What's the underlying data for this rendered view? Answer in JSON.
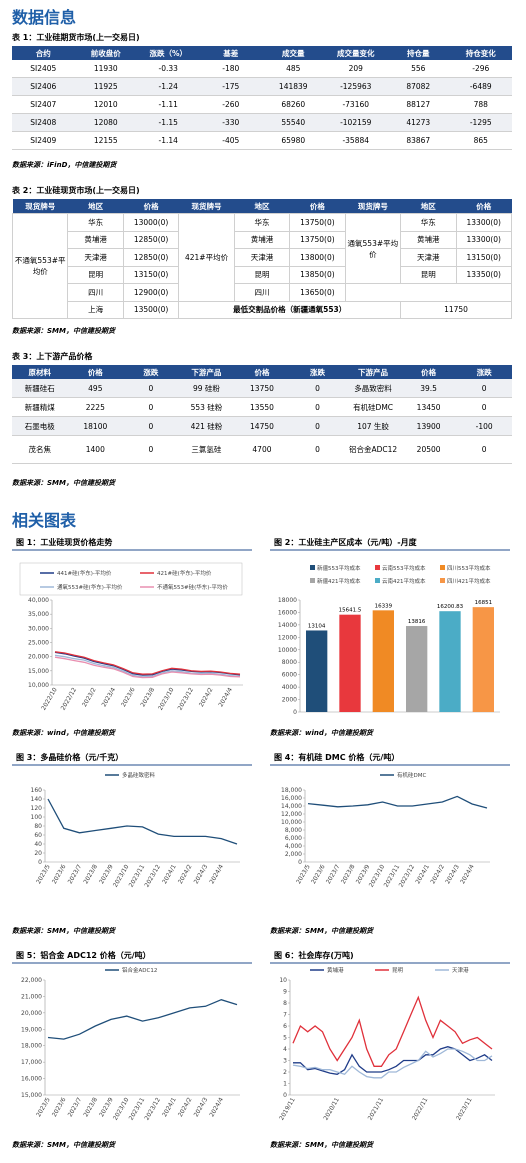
{
  "header": {
    "title": "数据信息"
  },
  "table1": {
    "title": "表 1：工业硅期货市场(上一交易日)",
    "columns": [
      "合约",
      "前收盘价",
      "涨跌（%）",
      "基差",
      "成交量",
      "成交量变化",
      "持仓量",
      "持仓变化"
    ],
    "rows": [
      [
        "SI2405",
        11930,
        -0.33,
        -180,
        485,
        209,
        556,
        -296
      ],
      [
        "SI2406",
        11925,
        -1.24,
        -175,
        141839,
        -125963,
        87082,
        -6489
      ],
      [
        "SI2407",
        12010,
        -1.11,
        -260,
        68260,
        -73160,
        88127,
        788
      ],
      [
        "SI2408",
        12080,
        -1.15,
        -330,
        55540,
        -102159,
        41273,
        -1295
      ],
      [
        "SI2409",
        12155,
        -1.14,
        -405,
        65980,
        -35884,
        83867,
        865
      ]
    ],
    "source": "数据来源：iFinD，中信建投期货"
  },
  "table2": {
    "title": "表 2：工业硅现货市场(上一交易日)",
    "columns": [
      "现货牌号",
      "地区",
      "价格",
      "现货牌号",
      "地区",
      "价格",
      "现货牌号",
      "地区",
      "价格"
    ],
    "blocks": [
      {
        "brand": "不通氧553#平均价",
        "regions": [
          "华东",
          "黄埔港",
          "天津港",
          "昆明",
          "四川",
          "上海"
        ],
        "prices": [
          "13000(0)",
          "12850(0)",
          "12850(0)",
          "13150(0)",
          "12900(0)",
          "13500(0)"
        ]
      },
      {
        "brand": "421#平均价",
        "regions": [
          "华东",
          "黄埔港",
          "天津港",
          "昆明",
          "四川"
        ],
        "prices": [
          "13750(0)",
          "13750(0)",
          "13800(0)",
          "13850(0)",
          "13650(0)"
        ]
      },
      {
        "brand": "通氧553#平均价",
        "regions": [
          "华东",
          "黄埔港",
          "天津港",
          "昆明"
        ],
        "prices": [
          "13300(0)",
          "13300(0)",
          "13150(0)",
          "13350(0)"
        ]
      }
    ],
    "min_delivery": {
      "label": "最低交割品价格（新疆通氧553）",
      "value": 11750
    },
    "source": "数据来源：SMM，中信建投期货"
  },
  "table3": {
    "title": "表 3：上下游产品价格",
    "columns": [
      "原材料",
      "价格",
      "涨跌",
      "下游产品",
      "价格",
      "涨跌",
      "下游产品",
      "价格",
      "涨跌"
    ],
    "rows": [
      [
        "新疆硅石",
        495,
        0,
        "99 硅粉",
        13750,
        0,
        "多晶致密料",
        39.5,
        0
      ],
      [
        "新疆精煤",
        2225,
        0,
        "553 硅粉",
        13550,
        0,
        "有机硅DMC",
        13450,
        0
      ],
      [
        "石墨电极",
        18100,
        0,
        "421 硅粉",
        14750,
        0,
        "107 生胶",
        13900,
        -100
      ],
      [
        "茂名焦",
        1400,
        0,
        "三氯氢硅",
        4700,
        0,
        "铝合金ADC12",
        20500,
        0
      ]
    ],
    "source": "数据来源：SMM，中信建投期货"
  },
  "section2": "相关图表",
  "charts": [
    {
      "type": "line",
      "title": "图 1：工业硅现货价格走势",
      "source": "数据来源：wind，中信建投期货",
      "categories": [
        "2022/10",
        null,
        "2022/12",
        null,
        "2023/2",
        null,
        "2023/4",
        null,
        "2023/6",
        null,
        "2023/8",
        null,
        "2023/10",
        null,
        "2023/12",
        null,
        "2024/2",
        null,
        "2024/4",
        null
      ],
      "ylim": [
        10000,
        40000
      ],
      "yticks": [
        {
          "value": 10000,
          "label": "10,000"
        },
        {
          "value": 15000,
          "label": "15,000"
        },
        {
          "value": 20000,
          "label": "20,000"
        },
        {
          "value": 25000,
          "label": "25,000"
        },
        {
          "value": 30000,
          "label": "30,000"
        },
        {
          "value": 35000,
          "label": "35,000"
        },
        {
          "value": 40000,
          "label": "40,000"
        }
      ],
      "series": [
        {
          "name": "441#硅(华东)-平均价",
          "color": "#1f3c88",
          "values": [
            21500,
            21000,
            20200,
            19500,
            18300,
            17500,
            16800,
            15500,
            14000,
            13500,
            13600,
            14800,
            15600,
            15300,
            14800,
            14600,
            14700,
            14400,
            13900,
            13600
          ]
        },
        {
          "name": "421#硅(华东)-平均价",
          "color": "#e0303a",
          "values": [
            21700,
            21300,
            20500,
            19800,
            18600,
            17800,
            17100,
            15800,
            14300,
            13800,
            13900,
            15000,
            15900,
            15600,
            15000,
            14800,
            14900,
            14600,
            14100,
            13800
          ]
        },
        {
          "name": "通氧553#硅(华东)-平均价",
          "color": "#9fb8d8",
          "values": [
            20500,
            20000,
            19300,
            18800,
            17600,
            16800,
            16200,
            14900,
            13400,
            12900,
            13000,
            14300,
            15000,
            14700,
            14200,
            14000,
            14100,
            13800,
            13300,
            13100
          ]
        },
        {
          "name": "不通氧553#硅(华东)-平均价",
          "color": "#e98fb0",
          "values": [
            19800,
            19300,
            18600,
            18000,
            17000,
            16300,
            15700,
            14500,
            13000,
            12600,
            12700,
            13900,
            14600,
            14300,
            13900,
            13700,
            13800,
            13500,
            13000,
            12900
          ]
        }
      ]
    },
    {
      "type": "bar",
      "title": "图 2：工业硅主产区成本（元/吨）-月度",
      "source": "数据来源：wind，中信建投期货",
      "categories": [
        "新疆553平均成本",
        "云南553平均成本",
        "四川553平均成本",
        "新疆421平均成本",
        "云南421平均成本",
        "四川421平均成本"
      ],
      "values": [
        13104,
        15641.5,
        16339,
        13816,
        16200.83,
        16851
      ],
      "colors": [
        "#1f4e79",
        "#e8383d",
        "#f08a24",
        "#a6a6a6",
        "#4bacc6",
        "#f79646"
      ],
      "ylim": [
        0,
        18000
      ],
      "yticks": [
        0,
        2000,
        4000,
        6000,
        8000,
        10000,
        12000,
        14000,
        16000,
        18000
      ]
    },
    {
      "type": "line",
      "title": "图 3：多晶硅价格（元/千克）",
      "source": "数据来源：SMM，中信建投期货",
      "categories": [
        "2023/5",
        "2023/6",
        "2023/7",
        "2023/8",
        "2023/9",
        "2023/10",
        "2023/11",
        "2023/12",
        "2024/1",
        "2024/2",
        "2024/3",
        "2024/4",
        null
      ],
      "ylim": [
        0,
        160
      ],
      "yticks": [
        0,
        20,
        40,
        60,
        80,
        100,
        120,
        140,
        160
      ],
      "series": [
        {
          "name": "多晶硅致密料",
          "color": "#1f4e79",
          "values": [
            140,
            75,
            65,
            70,
            75,
            80,
            78,
            62,
            57,
            57,
            57,
            52,
            40
          ]
        }
      ]
    },
    {
      "type": "line",
      "title": "图 4：有机硅 DMC 价格（元/吨）",
      "source": "数据来源：SMM，中信建投期货",
      "categories": [
        "2023/5",
        "2023/6",
        "2023/7",
        "2023/8",
        "2023/9",
        "2023/10",
        "2023/11",
        "2023/12",
        "2024/1",
        "2024/2",
        "2024/3",
        "2024/4",
        null
      ],
      "ylim": [
        0,
        18000
      ],
      "yticks": [
        0,
        {
          "value": 2000,
          "label": "2,000"
        },
        {
          "value": 4000,
          "label": "4,000"
        },
        {
          "value": 6000,
          "label": "6,000"
        },
        {
          "value": 8000,
          "label": "8,000"
        },
        {
          "value": 10000,
          "label": "10,000"
        },
        {
          "value": 12000,
          "label": "12,000"
        },
        {
          "value": 14000,
          "label": "14,000"
        },
        {
          "value": 16000,
          "label": "16,000"
        },
        {
          "value": 18000,
          "label": "18,000"
        }
      ],
      "series": [
        {
          "name": "有机硅DMC",
          "color": "#1f4e79",
          "values": [
            14600,
            14200,
            13800,
            14000,
            14300,
            15000,
            14000,
            14000,
            14500,
            15000,
            16400,
            14500,
            13500
          ]
        }
      ]
    },
    {
      "type": "line",
      "title": "图 5：铝合金 ADC12 价格（元/吨）",
      "source": "数据来源：SMM，中信建投期货",
      "categories": [
        "2023/5",
        "2023/6",
        "2023/7",
        "2023/8",
        "2023/9",
        "2023/10",
        "2023/11",
        "2023/12",
        "2024/1",
        "2024/2",
        "2024/3",
        "2024/4",
        null
      ],
      "ylim": [
        15000,
        22000
      ],
      "yticks": [
        {
          "value": 15000,
          "label": "15,000"
        },
        {
          "value": 16000,
          "label": "16,000"
        },
        {
          "value": 17000,
          "label": "17,000"
        },
        {
          "value": 18000,
          "label": "18,000"
        },
        {
          "value": 19000,
          "label": "19,000"
        },
        {
          "value": 20000,
          "label": "20,000"
        },
        {
          "value": 21000,
          "label": "21,000"
        },
        {
          "value": 22000,
          "label": "22,000"
        }
      ],
      "series": [
        {
          "name": "铝合金ADC12",
          "color": "#1f4e79",
          "values": [
            18500,
            18400,
            18700,
            19200,
            19600,
            19800,
            19500,
            19700,
            20000,
            20300,
            20400,
            20800,
            20500
          ]
        }
      ]
    },
    {
      "type": "line",
      "title": "图 6：社会库存(万吨)",
      "source": "数据来源：SMM，中信建投期货",
      "categories": [
        "2019/11",
        null,
        null,
        null,
        null,
        null,
        "2020/11",
        null,
        null,
        null,
        null,
        null,
        "2021/11",
        null,
        null,
        null,
        null,
        null,
        "2022/11",
        null,
        null,
        null,
        null,
        null,
        "2023/11",
        null,
        null,
        null
      ],
      "ylim": [
        0,
        10
      ],
      "yticks": [
        0,
        1,
        2,
        3,
        4,
        5,
        6,
        7,
        8,
        9,
        10
      ],
      "series": [
        {
          "name": "黄埔港",
          "color": "#1f3c88",
          "values": [
            2.8,
            2.8,
            2.2,
            2.3,
            2.1,
            1.9,
            1.8,
            2.2,
            3.5,
            2.5,
            2,
            2,
            2,
            2.2,
            2.5,
            3,
            3,
            3,
            3.5,
            3.5,
            4,
            4.2,
            4,
            3.5,
            3,
            3.2,
            3.5,
            3
          ]
        },
        {
          "name": "昆明",
          "color": "#e0303a",
          "values": [
            4.5,
            6,
            5.5,
            6,
            5.5,
            4,
            3,
            4,
            5,
            6.5,
            4,
            2.5,
            2.5,
            3.5,
            4,
            5.5,
            7,
            8.5,
            6.5,
            5,
            6.5,
            6,
            5.5,
            4.5,
            4.8,
            5,
            4.5,
            4
          ]
        },
        {
          "name": "天津港",
          "color": "#9fb8d8",
          "values": [
            2.6,
            2.5,
            2.3,
            2.4,
            2.2,
            2.2,
            2,
            1.8,
            2.5,
            2,
            1.6,
            1.5,
            1.5,
            2,
            2,
            2.4,
            2.7,
            3,
            3.8,
            3.3,
            3.6,
            4,
            4,
            3.8,
            3.5,
            3,
            3,
            3.4
          ]
        }
      ]
    }
  ]
}
